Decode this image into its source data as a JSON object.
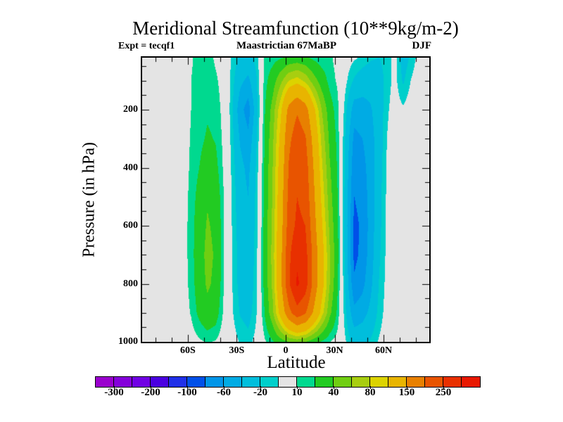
{
  "chart_data": {
    "type": "filled_contour",
    "title": "Meridional Streamfunction (10**9kg/m-2)",
    "annotations": {
      "experiment": "Expt = tecqf1",
      "subtitle": "Maastrictian 67MaBP",
      "season": "DJF"
    },
    "xlabel": "Latitude",
    "ylabel": "Pressure (in hPa)",
    "xlim": [
      -88,
      88
    ],
    "ylim_hPa": [
      20,
      1000
    ],
    "grid_lines": false,
    "legend_position": "bottom-colorbar",
    "x_ticks": [
      {
        "lat": -60,
        "label": "60S"
      },
      {
        "lat": -30,
        "label": "30S"
      },
      {
        "lat": 0,
        "label": "0"
      },
      {
        "lat": 30,
        "label": "30N"
      },
      {
        "lat": 60,
        "label": "60N"
      }
    ],
    "x_minor_tick_step_deg": 10,
    "y_ticks": [
      {
        "p": 200,
        "label": "200"
      },
      {
        "p": 400,
        "label": "400"
      },
      {
        "p": 600,
        "label": "600"
      },
      {
        "p": 800,
        "label": "800"
      },
      {
        "p": 1000,
        "label": "1000"
      }
    ],
    "y_minor_tick_step_hPa": 50,
    "levels": [
      -300,
      -250,
      -200,
      -150,
      -100,
      -80,
      -60,
      -40,
      -20,
      -10,
      10,
      20,
      40,
      60,
      80,
      100,
      150,
      200,
      250,
      300
    ],
    "palette": [
      "#9A00CE",
      "#8400DA",
      "#7000E4",
      "#4A00E0",
      "#2030E8",
      "#0050E8",
      "#0095E8",
      "#00ABE4",
      "#00BEDC",
      "#00CFCB",
      "#E4E4E4",
      "#00D98F",
      "#22CB22",
      "#70CE12",
      "#A8CE10",
      "#DCD300",
      "#E8B400",
      "#E88000",
      "#E85400",
      "#E83000",
      "#E81800"
    ],
    "zero_band_color": "#E4E4E4",
    "colorbar_label_values": [
      -300,
      -200,
      -100,
      -60,
      -20,
      10,
      40,
      80,
      150,
      250
    ],
    "grid": {
      "latitudes": [
        -88,
        -83,
        -78,
        -73,
        -68,
        -63,
        -58,
        -53,
        -48,
        -43,
        -38,
        -33,
        -28,
        -23,
        -18,
        -13,
        -8,
        -3,
        2,
        7,
        12,
        17,
        22,
        27,
        32,
        37,
        42,
        47,
        52,
        57,
        62,
        67,
        72,
        77,
        82,
        87
      ],
      "pressures": [
        20,
        100,
        200,
        300,
        400,
        500,
        600,
        700,
        800,
        900,
        1000
      ],
      "values": [
        [
          0,
          0,
          0,
          0,
          0,
          0,
          0,
          0,
          0,
          0,
          0
        ],
        [
          0,
          0,
          0,
          0,
          0,
          0,
          0,
          0,
          0,
          0,
          0
        ],
        [
          0,
          0,
          0,
          0,
          0,
          0,
          0,
          0,
          0,
          0,
          0
        ],
        [
          0,
          0,
          0,
          0,
          0,
          1,
          1,
          1,
          1,
          0,
          0
        ],
        [
          1,
          1,
          1,
          1,
          2,
          2,
          2,
          2,
          2,
          1,
          0
        ],
        [
          3,
          3,
          3,
          4,
          4,
          5,
          5,
          5,
          5,
          4,
          1
        ],
        [
          9,
          10,
          10,
          11,
          12,
          13,
          14,
          14,
          13,
          11,
          4
        ],
        [
          13,
          13,
          14,
          16,
          20,
          26,
          30,
          32,
          30,
          24,
          8
        ],
        [
          15,
          16,
          18,
          22,
          30,
          38,
          42,
          45,
          43,
          34,
          11
        ],
        [
          8,
          12,
          16,
          19,
          25,
          32,
          36,
          38,
          36,
          28,
          9
        ],
        [
          4,
          5,
          6,
          7,
          8,
          10,
          11,
          11,
          10,
          8,
          3
        ],
        [
          -12,
          -14,
          -16,
          -14,
          -12,
          -11,
          -10,
          -9,
          -9,
          -8,
          -4
        ],
        [
          -22,
          -35,
          -52,
          -42,
          -34,
          -30,
          -28,
          -26,
          -25,
          -21,
          -11
        ],
        [
          -25,
          -45,
          -70,
          -55,
          -45,
          -40,
          -37,
          -34,
          -32,
          -27,
          -14
        ],
        [
          -15,
          -22,
          -28,
          -22,
          -18,
          -16,
          -15,
          -14,
          -13,
          -11,
          -6
        ],
        [
          11,
          14,
          18,
          20,
          22,
          24,
          25,
          26,
          25,
          20,
          8
        ],
        [
          14,
          30,
          48,
          55,
          60,
          62,
          65,
          68,
          65,
          55,
          18
        ],
        [
          18,
          55,
          95,
          110,
          118,
          125,
          130,
          138,
          140,
          115,
          30
        ],
        [
          23,
          80,
          165,
          190,
          205,
          215,
          225,
          240,
          245,
          185,
          40
        ],
        [
          25,
          90,
          195,
          225,
          240,
          250,
          260,
          290,
          308,
          230,
          45
        ],
        [
          22,
          75,
          170,
          205,
          225,
          235,
          250,
          270,
          275,
          205,
          40
        ],
        [
          16,
          50,
          110,
          135,
          150,
          160,
          170,
          185,
          185,
          145,
          28
        ],
        [
          12,
          30,
          60,
          75,
          85,
          95,
          105,
          115,
          115,
          90,
          18
        ],
        [
          12,
          15,
          28,
          35,
          42,
          48,
          55,
          62,
          60,
          45,
          10
        ],
        [
          6,
          8,
          12,
          15,
          17,
          19,
          21,
          22,
          20,
          15,
          5
        ],
        [
          -4,
          -8,
          -18,
          -25,
          -28,
          -30,
          -32,
          -30,
          -27,
          -20,
          -10
        ],
        [
          -8,
          -22,
          -50,
          -66,
          -74,
          -80,
          -86,
          -86,
          -76,
          -54,
          -26
        ],
        [
          -12,
          -30,
          -48,
          -60,
          -68,
          -72,
          -76,
          -74,
          -66,
          -48,
          -24
        ],
        [
          -18,
          -32,
          -42,
          -48,
          -50,
          -52,
          -52,
          -50,
          -45,
          -35,
          -18
        ],
        [
          -20,
          -28,
          -30,
          -30,
          -28,
          -26,
          -25,
          -23,
          -20,
          -16,
          -9
        ],
        [
          -16,
          -15,
          -12,
          -10,
          -9,
          -8,
          -8,
          -7,
          -6,
          -5,
          -3
        ],
        [
          -5,
          -6,
          -4,
          -2,
          -1,
          0,
          0,
          0,
          0,
          0,
          0
        ],
        [
          -28,
          -22,
          -8,
          -2,
          0,
          0,
          0,
          0,
          0,
          0,
          0
        ],
        [
          -17,
          -9,
          -2,
          0,
          0,
          0,
          0,
          0,
          0,
          0,
          0
        ],
        [
          -4,
          -2,
          0,
          0,
          0,
          0,
          0,
          0,
          0,
          0,
          0
        ],
        [
          0,
          0,
          0,
          0,
          0,
          0,
          0,
          0,
          0,
          0,
          0
        ]
      ]
    }
  }
}
